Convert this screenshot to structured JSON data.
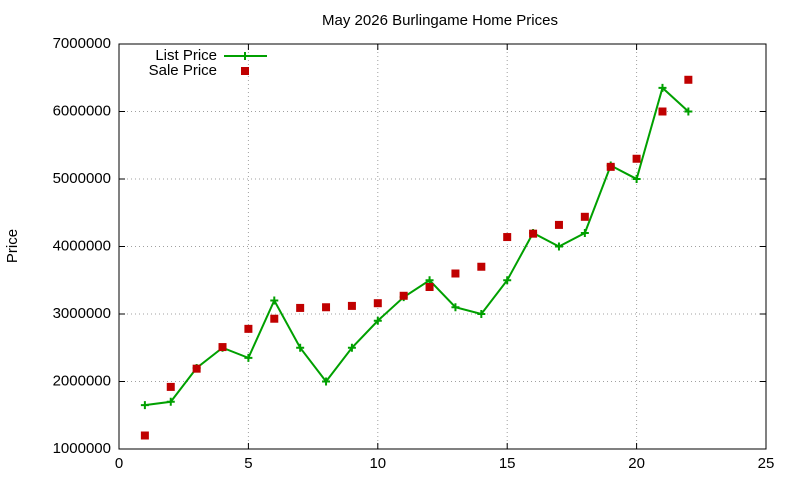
{
  "chart_data": {
    "type": "line",
    "title": "May 2026 Burlingame Home Prices",
    "y_label": "Price",
    "x": [
      1,
      2,
      3,
      4,
      5,
      6,
      7,
      8,
      9,
      10,
      11,
      12,
      13,
      14,
      15,
      16,
      17,
      18,
      19,
      20,
      21,
      22
    ],
    "series": [
      {
        "name": "List Price",
        "color": "#00a000",
        "style": "linespoints",
        "values": [
          1650000,
          1700000,
          2200000,
          2500000,
          2350000,
          3200000,
          2500000,
          2000000,
          2500000,
          2900000,
          3250000,
          3500000,
          3100000,
          3000000,
          3500000,
          4200000,
          4000000,
          4200000,
          5200000,
          5000000,
          6350000,
          6000000
        ]
      },
      {
        "name": "Sale Price",
        "color": "#c00000",
        "style": "points",
        "values": [
          1200000,
          1920000,
          2190000,
          2510000,
          2780000,
          2930000,
          3090000,
          3100000,
          3120000,
          3160000,
          3270000,
          3400000,
          3600000,
          3700000,
          4140000,
          4190000,
          4320000,
          4440000,
          5180000,
          5300000,
          6000000,
          6470000
        ]
      }
    ],
    "xlim": [
      0,
      25
    ],
    "xticks": [
      0,
      5,
      10,
      15,
      20,
      25
    ],
    "ylim": [
      1000000,
      7000000
    ],
    "yticks": [
      1000000,
      2000000,
      3000000,
      4000000,
      5000000,
      6000000,
      7000000
    ],
    "grid": true,
    "legend": "top-left"
  }
}
